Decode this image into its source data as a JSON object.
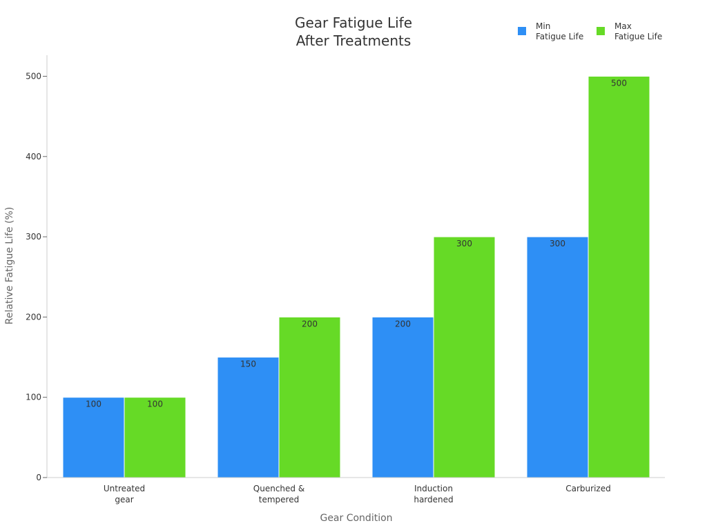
{
  "chart_data": {
    "type": "bar",
    "title_lines": [
      "Gear Fatigue Life",
      "After Treatments"
    ],
    "xlabel": "Gear Condition",
    "ylabel": "Relative Fatigue Life (%)",
    "ylim": [
      0,
      520
    ],
    "yticks": [
      0,
      100,
      200,
      300,
      400,
      500
    ],
    "categories": [
      [
        "Untreated",
        "gear"
      ],
      [
        "Quenched &",
        "tempered"
      ],
      [
        "Induction",
        "hardened"
      ],
      [
        "Carburized"
      ]
    ],
    "series": [
      {
        "name_lines": [
          "Min",
          "Fatigue Life"
        ],
        "color": "#2E8FF5",
        "values": [
          100,
          150,
          200,
          300
        ]
      },
      {
        "name_lines": [
          "Max",
          "Fatigue Life"
        ],
        "color": "#66DA26",
        "values": [
          100,
          200,
          300,
          500
        ]
      }
    ],
    "legend_position": "top-right",
    "grid": false
  }
}
